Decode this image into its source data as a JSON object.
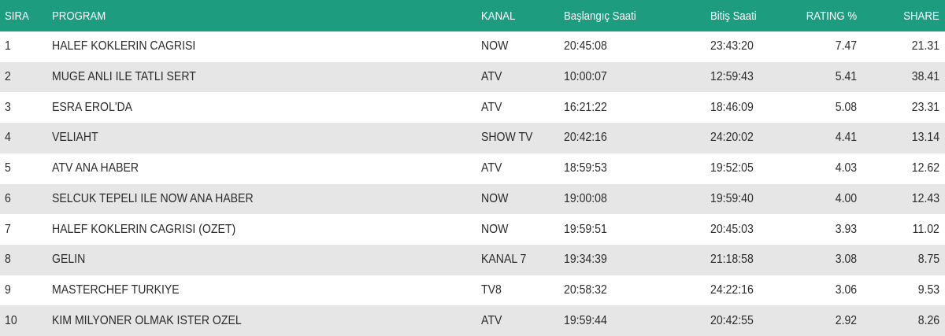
{
  "table": {
    "header": [
      "SIRA",
      "PROGRAM",
      "KANAL",
      "Başlangıç Saati",
      "Bitiş Saati",
      "RATING %",
      "SHARE"
    ],
    "rows": [
      [
        "1",
        "HALEF KOKLERIN CAGRISI",
        "NOW",
        "20:45:08",
        "23:43:20",
        "7.47",
        "21.31"
      ],
      [
        "2",
        "MUGE ANLI ILE TATLI SERT",
        "ATV",
        "10:00:07",
        "12:59:43",
        "5.41",
        "38.41"
      ],
      [
        "3",
        "ESRA EROL'DA",
        "ATV",
        "16:21:22",
        "18:46:09",
        "5.08",
        "23.31"
      ],
      [
        "4",
        "VELIAHT",
        "SHOW TV",
        "20:42:16",
        "24:20:02",
        "4.41",
        "13.14"
      ],
      [
        "5",
        "ATV ANA HABER",
        "ATV",
        "18:59:53",
        "19:52:05",
        "4.03",
        "12.62"
      ],
      [
        "6",
        "SELCUK TEPELI ILE NOW ANA HABER",
        "NOW",
        "19:00:08",
        "19:59:40",
        "4.00",
        "12.43"
      ],
      [
        "7",
        "HALEF KOKLERIN CAGRISI (OZET)",
        "NOW",
        "19:59:51",
        "20:45:03",
        "3.93",
        "11.02"
      ],
      [
        "8",
        "GELIN",
        "KANAL 7",
        "19:34:39",
        "21:18:58",
        "3.08",
        "8.75"
      ],
      [
        "9",
        "MASTERCHEF TURKIYE",
        "TV8",
        "20:58:32",
        "24:22:16",
        "3.06",
        "9.53"
      ],
      [
        "10",
        "KIM MILYONER OLMAK ISTER OZEL",
        "ATV",
        "19:59:44",
        "20:42:55",
        "2.92",
        "8.26"
      ]
    ]
  }
}
